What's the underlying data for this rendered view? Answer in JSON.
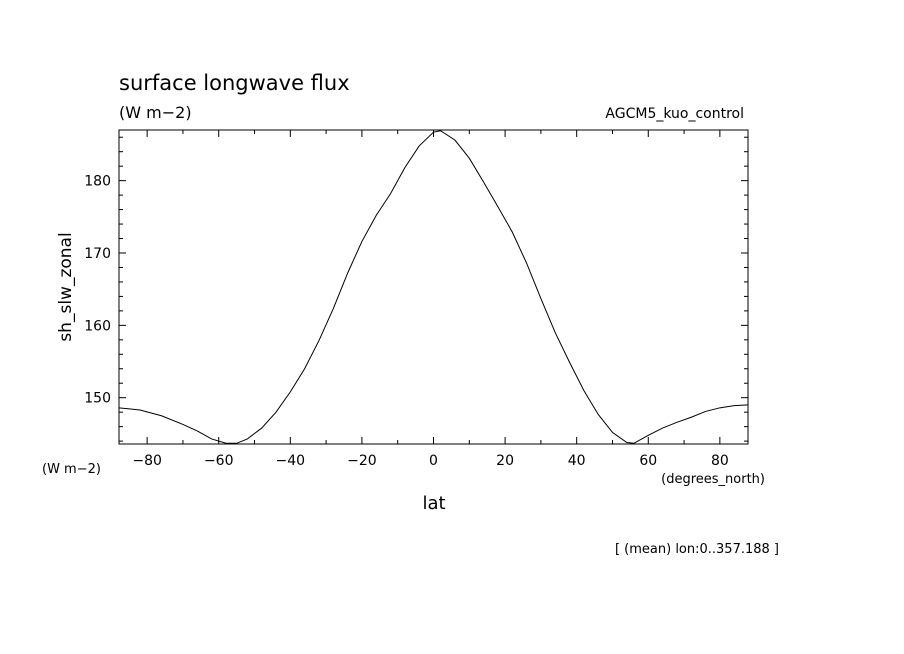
{
  "chart_data": {
    "type": "line",
    "title": "surface longwave flux",
    "subtitle": "(W m−2)",
    "run_label": "AGCM5_kuo_control",
    "ylabel": "sh_slw_zonal",
    "y_units": "(W m−2)",
    "xlabel": "lat",
    "x_units": "(degrees_north)",
    "footnote": "[ (mean) lon:0..357.188 ]",
    "xlim": [
      -87.86,
      87.86
    ],
    "ylim": [
      143.6,
      187.0
    ],
    "x_major_ticks": [
      -80,
      -60,
      -40,
      -20,
      0,
      20,
      40,
      60,
      80
    ],
    "x_tick_labels": [
      "−80",
      "−60",
      "−40",
      "−20",
      "0",
      "20",
      "40",
      "60",
      "80"
    ],
    "x_minor_step": 10,
    "y_major_ticks": [
      150,
      160,
      170,
      180
    ],
    "y_tick_labels": [
      "150",
      "160",
      "170",
      "180"
    ],
    "y_minor_step": 2,
    "grid": false,
    "line_color": "#000000",
    "series": [
      {
        "x": [
          -87.86,
          -82,
          -76,
          -70,
          -66,
          -62,
          -58,
          -55,
          -52,
          -48,
          -44,
          -40,
          -36,
          -32,
          -28,
          -24,
          -20,
          -16,
          -12,
          -8,
          -4,
          0,
          2,
          6,
          10,
          14,
          18,
          22,
          26,
          30,
          34,
          38,
          42,
          46,
          50,
          54,
          56,
          60,
          64,
          68,
          72,
          76,
          80,
          84,
          87.86
        ],
        "y": [
          148.6,
          148.3,
          147.5,
          146.3,
          145.4,
          144.3,
          143.7,
          143.7,
          144.3,
          145.8,
          148.0,
          150.8,
          154.0,
          157.9,
          162.3,
          167.2,
          171.6,
          175.2,
          178.2,
          181.8,
          184.8,
          186.7,
          186.9,
          185.6,
          183.1,
          179.8,
          176.4,
          172.9,
          168.6,
          163.7,
          159.0,
          154.9,
          151.0,
          147.7,
          145.2,
          143.8,
          143.7,
          144.8,
          145.8,
          146.6,
          147.3,
          148.1,
          148.6,
          148.9,
          149.0
        ]
      }
    ]
  }
}
